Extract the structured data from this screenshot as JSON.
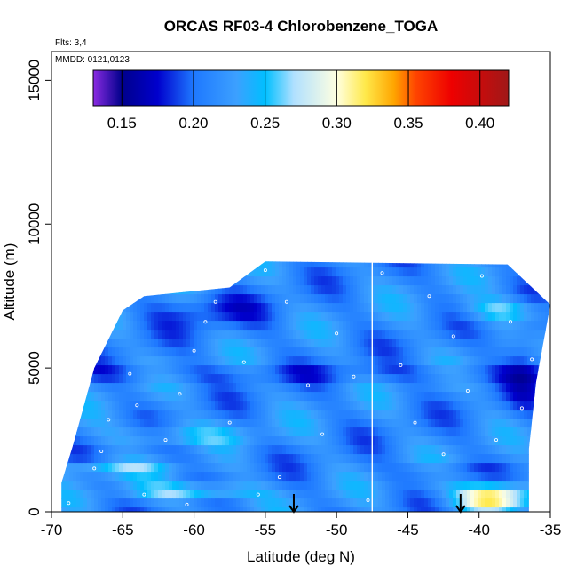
{
  "chart_data": {
    "type": "heatmap",
    "title": "ORCAS RF03-4 Chlorobenzene_TOGA",
    "annotations": {
      "flights": "Flts: 3,4",
      "dates": "MMDD: 0121,0123"
    },
    "xlabel": "Latitude (deg N)",
    "ylabel": "Altitude (m)",
    "xlim": [
      -70,
      -35
    ],
    "ylim": [
      0,
      16000
    ],
    "x_ticks": [
      -70,
      -65,
      -60,
      -55,
      -50,
      -45,
      -40,
      -35
    ],
    "x_tick_labels": [
      "-70",
      "-65",
      "-60",
      "-55",
      "-50",
      "-45",
      "-40",
      "-35"
    ],
    "y_ticks": [
      0,
      5000,
      10000,
      15000
    ],
    "y_tick_labels": [
      "0",
      "5000",
      "10000",
      "15000"
    ],
    "colorbar": {
      "range": [
        0.13,
        0.42
      ],
      "ticks": [
        0.15,
        0.2,
        0.25,
        0.3,
        0.35,
        0.4
      ],
      "tick_labels": [
        "0.15",
        "0.20",
        "0.25",
        "0.30",
        "0.35",
        "0.40"
      ],
      "color_stops": [
        {
          "v": 0.13,
          "c": "#8a2be2"
        },
        {
          "v": 0.15,
          "c": "#00008b"
        },
        {
          "v": 0.175,
          "c": "#0000cd"
        },
        {
          "v": 0.2,
          "c": "#1e78ff"
        },
        {
          "v": 0.23,
          "c": "#3ca0ff"
        },
        {
          "v": 0.25,
          "c": "#00bfff"
        },
        {
          "v": 0.27,
          "c": "#b0e0ff"
        },
        {
          "v": 0.3,
          "c": "#ffffe0"
        },
        {
          "v": 0.32,
          "c": "#ffe94a"
        },
        {
          "v": 0.34,
          "c": "#ffa500"
        },
        {
          "v": 0.355,
          "c": "#ff4500"
        },
        {
          "v": 0.38,
          "c": "#ee0000"
        },
        {
          "v": 0.42,
          "c": "#a01818"
        }
      ]
    },
    "domain_outline": [
      [
        -69.3,
        0
      ],
      [
        -36.5,
        0
      ],
      [
        -36.5,
        2200
      ],
      [
        -36.0,
        4500
      ],
      [
        -35.0,
        7200
      ],
      [
        -38.0,
        8600
      ],
      [
        -55.0,
        8700
      ],
      [
        -57.5,
        7800
      ],
      [
        -63.5,
        7500
      ],
      [
        -65.0,
        7000
      ],
      [
        -67.0,
        5000
      ],
      [
        -68.5,
        2300
      ],
      [
        -69.3,
        1000
      ]
    ],
    "divider_latitude": -47.5,
    "arrow_latitudes": [
      -53,
      -41.3
    ],
    "sample_points": [
      [
        -68.8,
        300
      ],
      [
        -67.0,
        1500
      ],
      [
        -66.0,
        3200
      ],
      [
        -64.5,
        4800
      ],
      [
        -63.5,
        600
      ],
      [
        -62.0,
        2500
      ],
      [
        -61.0,
        4100
      ],
      [
        -60.0,
        5600
      ],
      [
        -59.2,
        6600
      ],
      [
        -58.5,
        7300
      ],
      [
        -57.5,
        3100
      ],
      [
        -56.5,
        5200
      ],
      [
        -55.0,
        8400
      ],
      [
        -54.0,
        1200
      ],
      [
        -53.5,
        7300
      ],
      [
        -52.0,
        4400
      ],
      [
        -51.0,
        2700
      ],
      [
        -50.0,
        6200
      ],
      [
        -48.8,
        4700
      ],
      [
        -47.8,
        400
      ],
      [
        -46.8,
        8300
      ],
      [
        -45.5,
        5100
      ],
      [
        -44.5,
        3100
      ],
      [
        -43.5,
        7500
      ],
      [
        -42.5,
        2000
      ],
      [
        -41.8,
        6100
      ],
      [
        -40.8,
        4200
      ],
      [
        -39.8,
        8200
      ],
      [
        -38.8,
        2500
      ],
      [
        -37.8,
        6600
      ],
      [
        -37.0,
        3600
      ],
      [
        -36.3,
        5300
      ],
      [
        -55.5,
        600
      ],
      [
        -60.5,
        250
      ],
      [
        -64.0,
        3700
      ],
      [
        -66.5,
        2100
      ]
    ]
  }
}
